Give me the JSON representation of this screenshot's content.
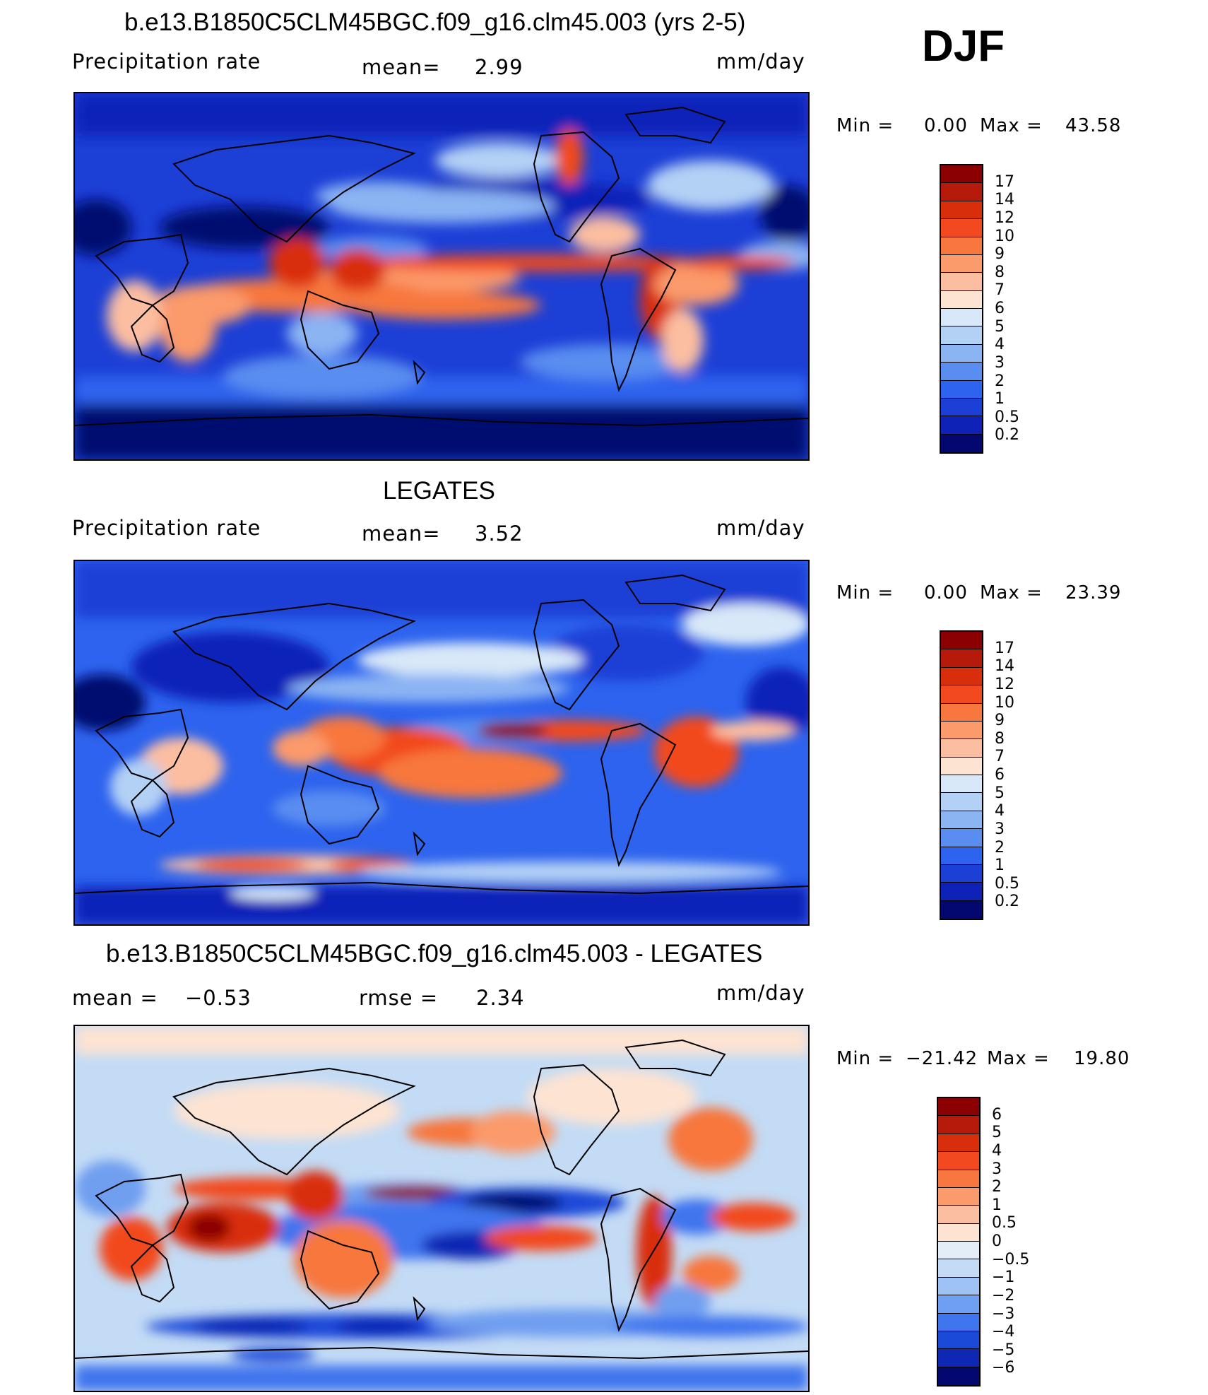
{
  "season": "DJF",
  "panels": [
    {
      "title": "b.e13.B1850C5CLM45BGC.f09_g16.clm45.003 (yrs 2-5)",
      "left_label": "Precipitation  rate",
      "center_label": "mean=",
      "center_value": "2.99",
      "units": "mm/day",
      "min_label": "Min  =",
      "min_value": "0.00",
      "max_label": "Max  =",
      "max_value": "43.58",
      "colorbar": {
        "ticks": [
          "17",
          "14",
          "12",
          "10",
          "9",
          "8",
          "7",
          "6",
          "5",
          "4",
          "3",
          "2",
          "1",
          "0.5",
          "0.2"
        ],
        "colors": [
          "#8b0000",
          "#b61a0a",
          "#d92e0c",
          "#f24a1e",
          "#f7773e",
          "#fb9a6a",
          "#fcbea0",
          "#fde3d2",
          "#d8e8f8",
          "#b3d0f5",
          "#8bb4f3",
          "#5a8df0",
          "#2d63ee",
          "#1c3fd6",
          "#0e22b8",
          "#02086f"
        ]
      }
    },
    {
      "title": "LEGATES",
      "left_label": "Precipitation  rate",
      "center_label": "mean=",
      "center_value": "3.52",
      "units": "mm/day",
      "min_label": "Min  =",
      "min_value": "0.00",
      "max_label": "Max  =",
      "max_value": "23.39",
      "colorbar": {
        "ticks": [
          "17",
          "14",
          "12",
          "10",
          "9",
          "8",
          "7",
          "6",
          "5",
          "4",
          "3",
          "2",
          "1",
          "0.5",
          "0.2"
        ],
        "colors": [
          "#8b0000",
          "#b61a0a",
          "#d92e0c",
          "#f24a1e",
          "#f7773e",
          "#fb9a6a",
          "#fcbea0",
          "#fde3d2",
          "#d8e8f8",
          "#b3d0f5",
          "#8bb4f3",
          "#5a8df0",
          "#2d63ee",
          "#1c3fd6",
          "#0e22b8",
          "#02086f"
        ]
      }
    },
    {
      "title": "b.e13.B1850C5CLM45BGC.f09_g16.clm45.003 - LEGATES",
      "left_label": "mean  =",
      "left_value": "−0.53",
      "center_label": "rmse  =",
      "center_value": "2.34",
      "units": "mm/day",
      "min_label": "Min  =",
      "min_value": "−21.42",
      "max_label": "Max  =",
      "max_value": "19.80",
      "colorbar": {
        "ticks": [
          "6",
          "5",
          "4",
          "3",
          "2",
          "1",
          "0.5",
          "0",
          "−0.5",
          "−1",
          "−2",
          "−3",
          "−4",
          "−5",
          "−6"
        ],
        "colors": [
          "#8b0000",
          "#b61a0a",
          "#d92e0c",
          "#f24a1e",
          "#f7773e",
          "#fb9a6a",
          "#fcbea0",
          "#fde3d2",
          "#e3edf8",
          "#c3dbf5",
          "#9dc2f3",
          "#6f9ff0",
          "#3f75ee",
          "#1c4ad8",
          "#0e27b4",
          "#02086f"
        ]
      }
    }
  ]
}
